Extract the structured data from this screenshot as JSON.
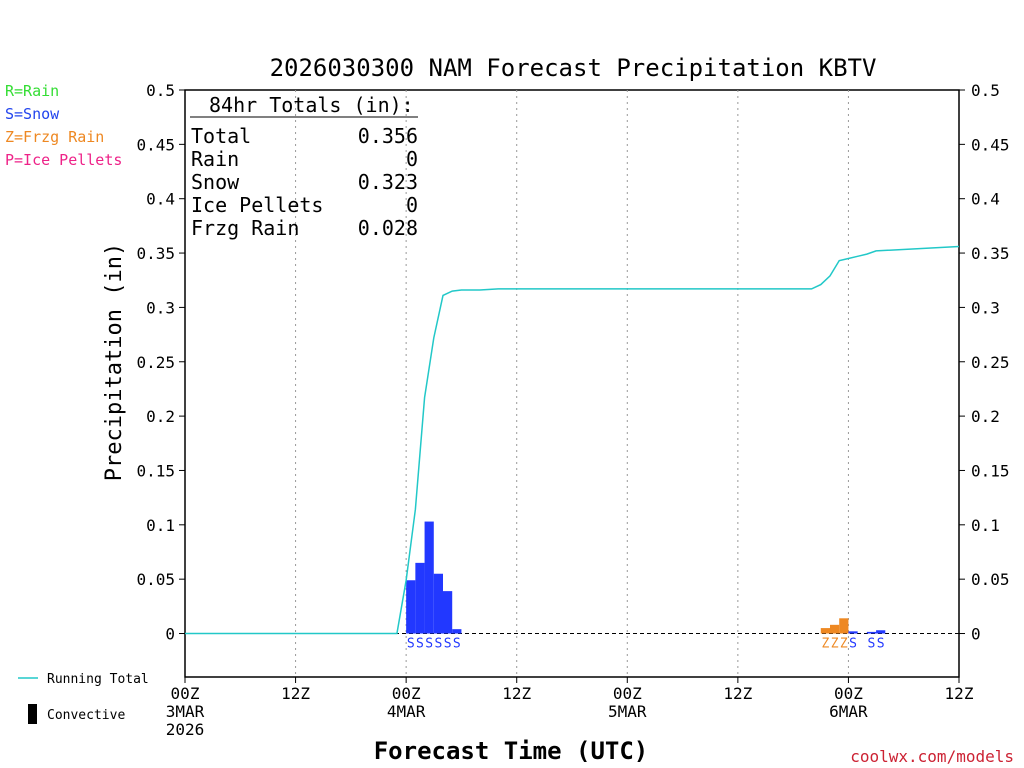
{
  "chart_data": {
    "type": "bar",
    "title": "2026030300 NAM Forecast Precipitation KBTV",
    "xlabel": "Forecast Time (UTC)",
    "ylabel": "Precipitation (in)",
    "ylim": [
      -0.04,
      0.5
    ],
    "yticks": [
      0,
      0.05,
      0.1,
      0.15,
      0.2,
      0.25,
      0.3,
      0.35,
      0.4,
      0.45,
      0.5
    ],
    "ytick_labels": [
      "0",
      "0.05",
      "0.1",
      "0.15",
      "0.2",
      "0.25",
      "0.3",
      "0.35",
      "0.4",
      "0.45",
      "0.5"
    ],
    "xlim_hours": [
      0,
      84
    ],
    "xticks": [
      {
        "hour": 0,
        "lines": [
          "00Z",
          "3MAR",
          "2026"
        ]
      },
      {
        "hour": 12,
        "lines": [
          "12Z"
        ]
      },
      {
        "hour": 24,
        "lines": [
          "00Z",
          "4MAR"
        ]
      },
      {
        "hour": 36,
        "lines": [
          "12Z"
        ]
      },
      {
        "hour": 48,
        "lines": [
          "00Z",
          "5MAR"
        ]
      },
      {
        "hour": 60,
        "lines": [
          "12Z"
        ]
      },
      {
        "hour": 72,
        "lines": [
          "00Z",
          "6MAR"
        ]
      },
      {
        "hour": 84,
        "lines": [
          "12Z"
        ]
      }
    ],
    "gridlines_hours": [
      12,
      24,
      36,
      48,
      60,
      72
    ],
    "bars": [
      {
        "hour": 24,
        "value": 0.049,
        "ptype": "snow"
      },
      {
        "hour": 25,
        "value": 0.065,
        "ptype": "snow"
      },
      {
        "hour": 26,
        "value": 0.103,
        "ptype": "snow"
      },
      {
        "hour": 27,
        "value": 0.055,
        "ptype": "snow"
      },
      {
        "hour": 28,
        "value": 0.039,
        "ptype": "snow"
      },
      {
        "hour": 29,
        "value": 0.004,
        "ptype": "snow"
      },
      {
        "hour": 69,
        "value": 0.005,
        "ptype": "frzg"
      },
      {
        "hour": 70,
        "value": 0.008,
        "ptype": "frzg"
      },
      {
        "hour": 71,
        "value": 0.014,
        "ptype": "frzg"
      },
      {
        "hour": 72,
        "value": 0.002,
        "ptype": "snow"
      },
      {
        "hour": 74,
        "value": 0.0015,
        "ptype": "snow"
      },
      {
        "hour": 75,
        "value": 0.003,
        "ptype": "snow"
      }
    ],
    "running_total": {
      "name": "Running Total",
      "x": [
        0,
        23,
        24,
        25,
        26,
        27,
        28,
        29,
        30,
        32,
        34,
        36,
        48,
        60,
        67,
        68,
        69,
        70,
        71,
        72,
        73,
        74,
        75,
        84
      ],
      "y": [
        0,
        0,
        0.049,
        0.114,
        0.217,
        0.272,
        0.311,
        0.315,
        0.316,
        0.316,
        0.317,
        0.317,
        0.317,
        0.317,
        0.317,
        0.317,
        0.321,
        0.329,
        0.343,
        0.345,
        0.347,
        0.349,
        0.352,
        0.356
      ]
    },
    "ptype_markers": [
      {
        "hour": 24,
        "text": "S",
        "ptype": "snow"
      },
      {
        "hour": 25,
        "text": "S",
        "ptype": "snow"
      },
      {
        "hour": 26,
        "text": "S",
        "ptype": "snow"
      },
      {
        "hour": 27,
        "text": "S",
        "ptype": "snow"
      },
      {
        "hour": 28,
        "text": "S",
        "ptype": "snow"
      },
      {
        "hour": 29,
        "text": "S",
        "ptype": "snow"
      },
      {
        "hour": 69,
        "text": "Z",
        "ptype": "frzg"
      },
      {
        "hour": 70,
        "text": "Z",
        "ptype": "frzg"
      },
      {
        "hour": 71,
        "text": "Z",
        "ptype": "frzg"
      },
      {
        "hour": 72,
        "text": "S",
        "ptype": "snow"
      },
      {
        "hour": 74,
        "text": "S",
        "ptype": "snow"
      },
      {
        "hour": 75,
        "text": "S",
        "ptype": "snow"
      }
    ],
    "totals_box": {
      "header": "84hr Totals (in):",
      "rows": [
        {
          "label": "Total",
          "value": "0.356"
        },
        {
          "label": "Rain",
          "value": "0"
        },
        {
          "label": "Snow",
          "value": "0.323"
        },
        {
          "label": "Ice Pellets",
          "value": "0"
        },
        {
          "label": "Frzg Rain",
          "value": "0.028"
        }
      ]
    },
    "ptype_legend": [
      {
        "text": "R=Rain",
        "color": "#33dd33"
      },
      {
        "text": "S=Snow",
        "color": "#2244ee"
      },
      {
        "text": "Z=Frzg Rain",
        "color": "#ee8822"
      },
      {
        "text": "P=Ice Pellets",
        "color": "#ee2288"
      }
    ],
    "line_legend": [
      {
        "text": "Running Total",
        "kind": "line",
        "color": "#22c8c8"
      },
      {
        "text": "Convective",
        "kind": "bar",
        "color": "#000000"
      }
    ]
  },
  "colors": {
    "snow": "#2238ff",
    "frzg": "#ee8822",
    "rain": "#33dd33",
    "ice": "#ee2288",
    "running_total": "#22c8c8",
    "credit": "#cc2233"
  },
  "credit": "coolwx.com/models"
}
